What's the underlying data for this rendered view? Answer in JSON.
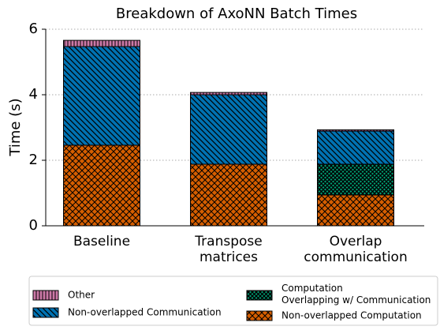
{
  "chart_data": {
    "type": "stacked_bar",
    "title": "Breakdown of AxoNN Batch Times",
    "ylabel": "Time (s)",
    "categories": [
      "Baseline",
      "Transpose matrices",
      "Overlap communication"
    ],
    "series": [
      {
        "name": "Non-overlapped Computation",
        "color": "#d55e00",
        "hatch": "crosshatch",
        "values": [
          2.46,
          1.88,
          0.94
        ]
      },
      {
        "name": "Computation Overlapping w/ Communication",
        "color": "#009e73",
        "hatch": "grid",
        "values": [
          0,
          0,
          0.94
        ]
      },
      {
        "name": "Non-overlapped Communication",
        "color": "#0072b2",
        "hatch": "diagonal",
        "values": [
          3.01,
          2.12,
          1.01
        ]
      },
      {
        "name": "Other",
        "color": "#cc79a7",
        "hatch": "vertical",
        "values": [
          0.19,
          0.07,
          0.04
        ]
      }
    ],
    "ylim": [
      0,
      6
    ],
    "yticks": [
      0,
      2,
      4,
      6
    ],
    "grid": true,
    "legend": "bottom"
  }
}
